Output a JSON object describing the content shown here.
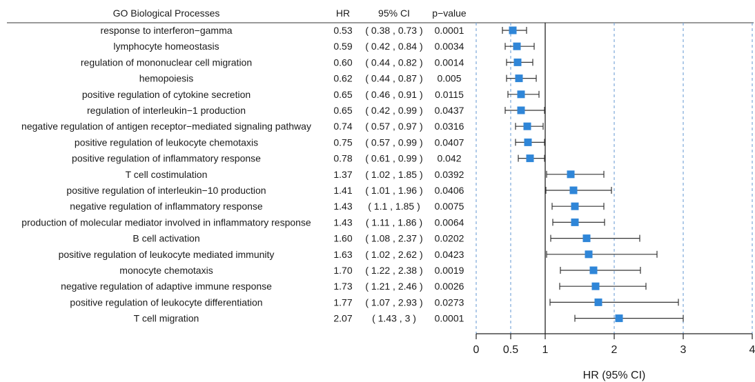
{
  "headers": {
    "term": "GO Biological Processes",
    "hr": "HR",
    "ci": "95% CI",
    "p": "p−value"
  },
  "chart_data": {
    "type": "forest",
    "xlabel": "HR (95% CI)",
    "xlim": [
      0,
      4
    ],
    "xticks": [
      0,
      0.5,
      1,
      2,
      3,
      4
    ],
    "xtick_labels": [
      "0",
      "0.5",
      "1",
      "2",
      "3",
      "4"
    ],
    "reference_line": 1,
    "dashed_gridlines": [
      0,
      0.5,
      2,
      3,
      4
    ],
    "marker_color": "#2f86d8",
    "rows": [
      {
        "term": "response to interferon−gamma",
        "hr": 0.53,
        "lo": 0.38,
        "hi": 0.73,
        "hr_text": "0.53",
        "ci_text": "( 0.38 , 0.73 )",
        "p_text": "0.0001"
      },
      {
        "term": "lymphocyte homeostasis",
        "hr": 0.59,
        "lo": 0.42,
        "hi": 0.84,
        "hr_text": "0.59",
        "ci_text": "( 0.42 , 0.84 )",
        "p_text": "0.0034"
      },
      {
        "term": "regulation of mononuclear cell migration",
        "hr": 0.6,
        "lo": 0.44,
        "hi": 0.82,
        "hr_text": "0.60",
        "ci_text": "( 0.44 , 0.82 )",
        "p_text": "0.0014"
      },
      {
        "term": "hemopoiesis",
        "hr": 0.62,
        "lo": 0.44,
        "hi": 0.87,
        "hr_text": "0.62",
        "ci_text": "( 0.44 , 0.87 )",
        "p_text": "0.005"
      },
      {
        "term": "positive regulation of cytokine secretion",
        "hr": 0.65,
        "lo": 0.46,
        "hi": 0.91,
        "hr_text": "0.65",
        "ci_text": "( 0.46 , 0.91 )",
        "p_text": "0.0115"
      },
      {
        "term": "regulation of interleukin−1 production",
        "hr": 0.65,
        "lo": 0.42,
        "hi": 0.99,
        "hr_text": "0.65",
        "ci_text": "( 0.42 , 0.99 )",
        "p_text": "0.0437"
      },
      {
        "term": "negative regulation of antigen receptor−mediated signaling pathway",
        "hr": 0.74,
        "lo": 0.57,
        "hi": 0.97,
        "hr_text": "0.74",
        "ci_text": "( 0.57 , 0.97 )",
        "p_text": "0.0316"
      },
      {
        "term": "positive regulation of leukocyte chemotaxis",
        "hr": 0.75,
        "lo": 0.57,
        "hi": 0.99,
        "hr_text": "0.75",
        "ci_text": "( 0.57 , 0.99 )",
        "p_text": "0.0407"
      },
      {
        "term": "positive regulation of inflammatory response",
        "hr": 0.78,
        "lo": 0.61,
        "hi": 0.99,
        "hr_text": "0.78",
        "ci_text": "( 0.61 , 0.99 )",
        "p_text": "0.042"
      },
      {
        "term": "T cell costimulation",
        "hr": 1.37,
        "lo": 1.02,
        "hi": 1.85,
        "hr_text": "1.37",
        "ci_text": "( 1.02 , 1.85 )",
        "p_text": "0.0392"
      },
      {
        "term": "positive regulation of interleukin−10 production",
        "hr": 1.41,
        "lo": 1.01,
        "hi": 1.96,
        "hr_text": "1.41",
        "ci_text": "( 1.01 , 1.96 )",
        "p_text": "0.0406"
      },
      {
        "term": "negative regulation of inflammatory response",
        "hr": 1.43,
        "lo": 1.1,
        "hi": 1.85,
        "hr_text": "1.43",
        "ci_text": "( 1.1 , 1.85 )",
        "p_text": "0.0075"
      },
      {
        "term": "production of molecular mediator involved in inflammatory response",
        "hr": 1.43,
        "lo": 1.11,
        "hi": 1.86,
        "hr_text": "1.43",
        "ci_text": "( 1.11 , 1.86 )",
        "p_text": "0.0064"
      },
      {
        "term": "B cell activation",
        "hr": 1.6,
        "lo": 1.08,
        "hi": 2.37,
        "hr_text": "1.60",
        "ci_text": "( 1.08 , 2.37 )",
        "p_text": "0.0202"
      },
      {
        "term": "positive regulation of leukocyte mediated immunity",
        "hr": 1.63,
        "lo": 1.02,
        "hi": 2.62,
        "hr_text": "1.63",
        "ci_text": "( 1.02 , 2.62 )",
        "p_text": "0.0423"
      },
      {
        "term": "monocyte chemotaxis",
        "hr": 1.7,
        "lo": 1.22,
        "hi": 2.38,
        "hr_text": "1.70",
        "ci_text": "( 1.22 , 2.38 )",
        "p_text": "0.0019"
      },
      {
        "term": "negative regulation of adaptive immune response",
        "hr": 1.73,
        "lo": 1.21,
        "hi": 2.46,
        "hr_text": "1.73",
        "ci_text": "( 1.21 , 2.46 )",
        "p_text": "0.0026"
      },
      {
        "term": "positive regulation of leukocyte differentiation",
        "hr": 1.77,
        "lo": 1.07,
        "hi": 2.93,
        "hr_text": "1.77",
        "ci_text": "( 1.07 , 2.93 )",
        "p_text": "0.0273"
      },
      {
        "term": "T cell migration",
        "hr": 2.07,
        "lo": 1.43,
        "hi": 3,
        "hr_text": "2.07",
        "ci_text": "( 1.43 , 3 )",
        "p_text": "0.0001"
      }
    ]
  }
}
